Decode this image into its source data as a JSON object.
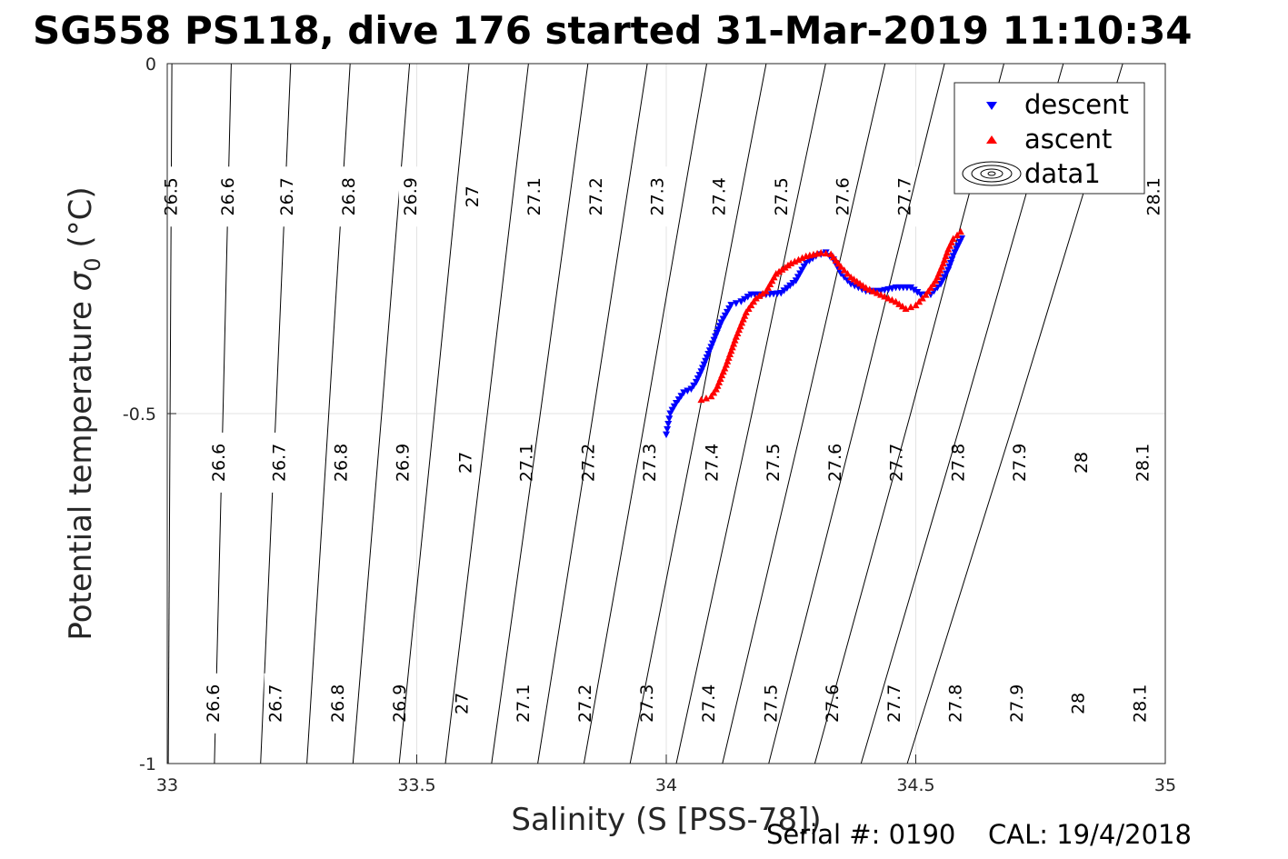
{
  "title": "SG558 PS118, dive 176 started 31-Mar-2019 11:10:34",
  "footer": {
    "serial_label": "Serial #: 0190",
    "cal_label": "CAL: 19/4/2018"
  },
  "chart_data": {
    "type": "scatter",
    "xlabel": "Salinity (S [PSS-78])",
    "ylabel_main": "Potential temperature ",
    "ylabel_symbol": "σ",
    "ylabel_subscript": "0",
    "ylabel_unit": " (°C)",
    "xlim": [
      33,
      35
    ],
    "ylim": [
      -1,
      0
    ],
    "xticks": [
      33,
      33.5,
      34,
      34.5,
      35
    ],
    "xtick_labels": [
      "33",
      "33.5",
      "34",
      "34.5",
      "35"
    ],
    "yticks": [
      0,
      -0.5,
      -1
    ],
    "ytick_labels": [
      "0",
      "-0.5",
      "-1"
    ],
    "grid": true,
    "legend": {
      "position": "top-right",
      "entries": [
        "descent",
        "ascent",
        "data1"
      ]
    },
    "contours": [
      {
        "level": "26.5",
        "s": [
          33.0092,
          33.0056,
          33.002
        ],
        "t": [
          0.0,
          -0.5,
          -1.0
        ],
        "labels": [
          [
            33.008,
            -0.19
          ]
        ]
      },
      {
        "level": "26.6",
        "s": [
          33.1283,
          33.1116,
          33.0946
        ],
        "t": [
          0.0,
          -0.5,
          -1.0
        ],
        "labels": [
          [
            33.122,
            -0.19
          ],
          [
            33.104,
            -0.57
          ],
          [
            33.093,
            -0.914
          ]
        ]
      },
      {
        "level": "26.7",
        "s": [
          33.2474,
          33.2176,
          33.1871
        ],
        "t": [
          0.0,
          -0.5,
          -1.0
        ],
        "labels": [
          [
            33.24,
            -0.19
          ],
          [
            33.225,
            -0.57
          ],
          [
            33.218,
            -0.914
          ]
        ]
      },
      {
        "level": "26.8",
        "s": [
          33.3665,
          33.3236,
          33.2797
        ],
        "t": [
          0.0,
          -0.5,
          -1.0
        ],
        "labels": [
          [
            33.364,
            -0.19
          ],
          [
            33.349,
            -0.57
          ],
          [
            33.342,
            -0.914
          ]
        ]
      },
      {
        "level": "26.9",
        "s": [
          33.4856,
          33.4296,
          33.3722
        ],
        "t": [
          0.0,
          -0.5,
          -1.0
        ],
        "labels": [
          [
            33.488,
            -0.19
          ],
          [
            33.473,
            -0.57
          ],
          [
            33.466,
            -0.914
          ]
        ]
      },
      {
        "level": "27",
        "s": [
          33.6047,
          33.5356,
          33.4648
        ],
        "t": [
          0.0,
          -0.5,
          -1.0
        ],
        "labels": [
          [
            33.612,
            -0.19
          ],
          [
            33.598,
            -0.57
          ],
          [
            33.591,
            -0.914
          ]
        ]
      },
      {
        "level": "27.1",
        "s": [
          33.7238,
          33.6416,
          33.5573
        ],
        "t": [
          0.0,
          -0.5,
          -1.0
        ],
        "labels": [
          [
            33.736,
            -0.19
          ],
          [
            33.72,
            -0.57
          ],
          [
            33.714,
            -0.914
          ]
        ]
      },
      {
        "level": "27.2",
        "s": [
          33.8429,
          33.7476,
          33.6499
        ],
        "t": [
          0.0,
          -0.5,
          -1.0
        ],
        "labels": [
          [
            33.86,
            -0.19
          ],
          [
            33.844,
            -0.57
          ],
          [
            33.838,
            -0.914
          ]
        ]
      },
      {
        "level": "27.3",
        "s": [
          33.962,
          33.8536,
          33.7424
        ],
        "t": [
          0.0,
          -0.5,
          -1.0
        ],
        "labels": [
          [
            33.983,
            -0.19
          ],
          [
            33.967,
            -0.57
          ],
          [
            33.962,
            -0.914
          ]
        ]
      },
      {
        "level": "27.4",
        "s": [
          34.0811,
          33.9596,
          33.835
        ],
        "t": [
          0.0,
          -0.5,
          -1.0
        ],
        "labels": [
          [
            34.107,
            -0.19
          ],
          [
            34.092,
            -0.57
          ],
          [
            34.086,
            -0.914
          ]
        ]
      },
      {
        "level": "27.5",
        "s": [
          34.2002,
          34.0656,
          33.9275
        ],
        "t": [
          0.0,
          -0.5,
          -1.0
        ],
        "labels": [
          [
            34.231,
            -0.19
          ],
          [
            34.215,
            -0.57
          ],
          [
            34.21,
            -0.914
          ]
        ]
      },
      {
        "level": "27.6",
        "s": [
          34.3193,
          34.1716,
          34.0201
        ],
        "t": [
          0.0,
          -0.5,
          -1.0
        ],
        "labels": [
          [
            34.354,
            -0.19
          ],
          [
            34.339,
            -0.57
          ],
          [
            34.333,
            -0.914
          ]
        ]
      },
      {
        "level": "27.7",
        "s": [
          34.4384,
          34.2776,
          34.1126
        ],
        "t": [
          0.0,
          -0.5,
          -1.0
        ],
        "labels": [
          [
            34.478,
            -0.19
          ],
          [
            34.462,
            -0.57
          ],
          [
            34.457,
            -0.914
          ]
        ]
      },
      {
        "level": "27.8",
        "s": [
          34.5575,
          34.3836,
          34.2052
        ],
        "t": [
          0.0,
          -0.5,
          -1.0
        ],
        "labels": [
          [
            34.586,
            -0.57
          ],
          [
            34.58,
            -0.914
          ]
        ]
      },
      {
        "level": "27.9",
        "s": [
          34.6766,
          34.4896,
          34.2977
        ],
        "t": [
          0.0,
          -0.5,
          -1.0
        ],
        "labels": [
          [
            34.709,
            -0.57
          ],
          [
            34.703,
            -0.914
          ]
        ]
      },
      {
        "level": "28",
        "s": [
          34.7957,
          34.5956,
          34.3903
        ],
        "t": [
          0.0,
          -0.5,
          -1.0
        ],
        "labels": [
          [
            34.832,
            -0.57
          ],
          [
            34.826,
            -0.914
          ]
        ]
      },
      {
        "level": "28.1",
        "s": [
          34.9148,
          34.7016,
          34.4828
        ],
        "t": [
          0.0,
          -0.5,
          -1.0
        ],
        "labels": [
          [
            34.977,
            -0.19
          ],
          [
            34.955,
            -0.57
          ],
          [
            34.95,
            -0.914
          ]
        ]
      }
    ],
    "series": [
      {
        "name": "descent",
        "marker": "triangle-down",
        "color": "#0000ff",
        "x": [
          34.0,
          34.004,
          34.008,
          34.02,
          34.035,
          34.05,
          34.06,
          34.07,
          34.09,
          34.11,
          34.13,
          34.15,
          34.17,
          34.2,
          34.23,
          34.26,
          34.28,
          34.3,
          34.32,
          34.335,
          34.35,
          34.37,
          34.4,
          34.43,
          34.46,
          34.49,
          34.51,
          34.53,
          34.55,
          34.565,
          34.575,
          34.585,
          34.592
        ],
        "y": [
          -0.53,
          -0.515,
          -0.5,
          -0.485,
          -0.47,
          -0.465,
          -0.455,
          -0.44,
          -0.405,
          -0.37,
          -0.345,
          -0.34,
          -0.33,
          -0.33,
          -0.328,
          -0.31,
          -0.285,
          -0.275,
          -0.27,
          -0.28,
          -0.3,
          -0.315,
          -0.325,
          -0.325,
          -0.32,
          -0.32,
          -0.33,
          -0.33,
          -0.315,
          -0.295,
          -0.275,
          -0.26,
          -0.25
        ]
      },
      {
        "name": "ascent",
        "marker": "triangle-up",
        "color": "#ff0000",
        "x": [
          34.07,
          34.08,
          34.09,
          34.1,
          34.12,
          34.14,
          34.16,
          34.18,
          34.2,
          34.22,
          34.25,
          34.28,
          34.31,
          34.33,
          34.35,
          34.37,
          34.4,
          34.43,
          34.46,
          34.48,
          34.5,
          34.52,
          34.54,
          34.555,
          34.565,
          34.575,
          34.583,
          34.59
        ],
        "y": [
          -0.48,
          -0.478,
          -0.475,
          -0.465,
          -0.43,
          -0.39,
          -0.355,
          -0.335,
          -0.325,
          -0.3,
          -0.285,
          -0.275,
          -0.27,
          -0.272,
          -0.29,
          -0.305,
          -0.32,
          -0.33,
          -0.34,
          -0.35,
          -0.345,
          -0.33,
          -0.31,
          -0.285,
          -0.265,
          -0.25,
          -0.245,
          -0.24
        ]
      }
    ]
  }
}
